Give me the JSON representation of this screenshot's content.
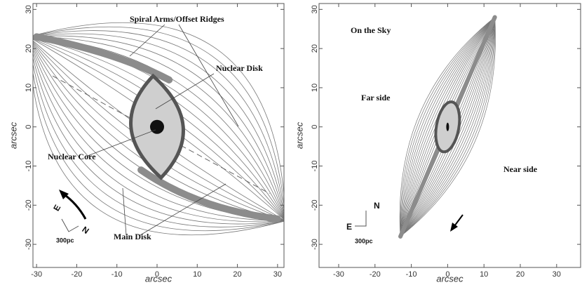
{
  "chart_data": [
    {
      "type": "schematic",
      "xlabel": "arcsec",
      "ylabel": "arcsec",
      "xlim": [
        -30.9,
        31.6
      ],
      "ylim": [
        -35.9,
        31.5
      ],
      "xticks": [
        -30,
        -20,
        -10,
        0,
        10,
        20,
        30
      ],
      "yticks": [
        -30,
        -20,
        -10,
        0,
        10,
        20,
        30
      ],
      "annotations": [
        "Spiral Arms/Offset Ridges",
        "Nuclear Disk",
        "Nuclear Core",
        "Main Disk",
        "E",
        "N",
        "300pc"
      ]
    },
    {
      "type": "sky",
      "xlabel": "arcsec",
      "ylabel": "arcsec",
      "xlim": [
        -35.4,
        36.6
      ],
      "ylim": [
        -35.9,
        31.5
      ],
      "xticks": [
        -30,
        -20,
        -10,
        0,
        10,
        20,
        30
      ],
      "yticks": [
        -30,
        -20,
        -10,
        0,
        10,
        20,
        30
      ],
      "annotations": [
        "On the Sky",
        "Far side",
        "Near side",
        "N",
        "E",
        "300pc"
      ]
    }
  ]
}
